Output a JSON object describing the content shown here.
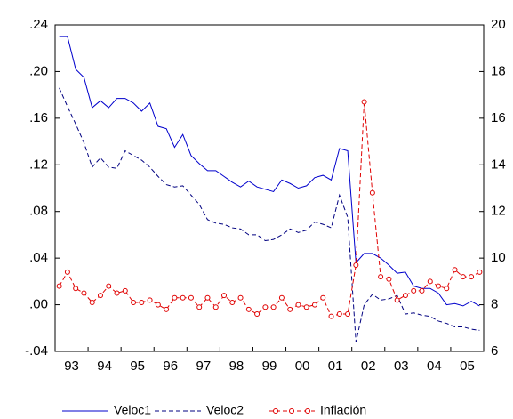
{
  "chart_data": {
    "type": "line",
    "categories": [
      "93",
      null,
      null,
      null,
      "94",
      null,
      null,
      null,
      "95",
      null,
      null,
      null,
      "96",
      null,
      null,
      null,
      "97",
      null,
      null,
      null,
      "98",
      null,
      null,
      null,
      "99",
      null,
      null,
      null,
      "00",
      null,
      null,
      null,
      "01",
      null,
      null,
      null,
      "02",
      null,
      null,
      null,
      "03",
      null,
      null,
      null,
      "04",
      null,
      null,
      null,
      "05",
      null,
      null,
      null
    ],
    "ylim": [
      -0.04,
      0.24
    ],
    "yticks": [
      {
        "value": -0.04,
        "label": "-.04"
      },
      {
        "value": 0,
        "label": ".00"
      },
      {
        "value": 0.04,
        "label": ".04"
      },
      {
        "value": 0.08,
        "label": ".08"
      },
      {
        "value": 0.12,
        "label": ".12"
      },
      {
        "value": 0.16,
        "label": ".16"
      },
      {
        "value": 0.2,
        "label": ".20"
      },
      {
        "value": 0.24,
        "label": ".24"
      }
    ],
    "y2lim": [
      6,
      20
    ],
    "y2ticks": [
      6,
      8,
      10,
      12,
      14,
      16,
      18,
      20
    ],
    "series": [
      {
        "name": "Veloc1",
        "color": "#0000cc",
        "style": "solid",
        "values": [
          0.23,
          0.23,
          0.202,
          0.195,
          0.169,
          0.175,
          0.169,
          0.177,
          0.177,
          0.173,
          0.166,
          0.173,
          0.153,
          0.151,
          0.135,
          0.146,
          0.128,
          0.121,
          0.115,
          0.115,
          0.11,
          0.105,
          0.101,
          0.106,
          0.101,
          0.099,
          0.097,
          0.107,
          0.104,
          0.1,
          0.102,
          0.109,
          0.111,
          0.107,
          0.134,
          0.132,
          0.036,
          0.044,
          0.044,
          0.04,
          0.034,
          0.027,
          0.028,
          0.016,
          0.014,
          0.014,
          0.01,
          0.0,
          0.001,
          -0.001,
          0.003,
          -0.001
        ]
      },
      {
        "name": "Veloc2",
        "color": "#000080",
        "style": "dashed",
        "values": [
          0.186,
          0.17,
          0.155,
          0.139,
          0.118,
          0.126,
          0.118,
          0.117,
          0.132,
          0.128,
          0.124,
          0.118,
          0.11,
          0.103,
          0.101,
          0.102,
          0.094,
          0.086,
          0.073,
          0.07,
          0.069,
          0.066,
          0.065,
          0.06,
          0.06,
          0.055,
          0.056,
          0.06,
          0.065,
          0.062,
          0.064,
          0.071,
          0.069,
          0.066,
          0.094,
          0.075,
          -0.032,
          0.0,
          0.009,
          0.004,
          0.005,
          0.008,
          -0.008,
          -0.007,
          -0.009,
          -0.01,
          -0.014,
          -0.016,
          -0.019,
          -0.019,
          -0.021,
          -0.022
        ]
      },
      {
        "name": "Inflación",
        "color": "#e00000",
        "style": "dashed",
        "marker": "circle",
        "axis": "y2",
        "values": [
          8.8,
          9.4,
          8.7,
          8.5,
          8.1,
          8.4,
          8.8,
          8.5,
          8.6,
          8.1,
          8.1,
          8.2,
          8.0,
          7.8,
          8.3,
          8.3,
          8.3,
          7.9,
          8.3,
          7.9,
          8.4,
          8.1,
          8.3,
          7.8,
          7.6,
          7.9,
          7.9,
          8.3,
          7.8,
          8.0,
          7.9,
          8.0,
          8.3,
          7.5,
          7.6,
          7.6,
          9.7,
          16.7,
          12.8,
          9.2,
          9.1,
          8.2,
          8.4,
          8.6,
          8.6,
          9.0,
          8.8,
          8.7,
          9.5,
          9.2,
          9.2,
          9.4
        ]
      }
    ]
  }
}
